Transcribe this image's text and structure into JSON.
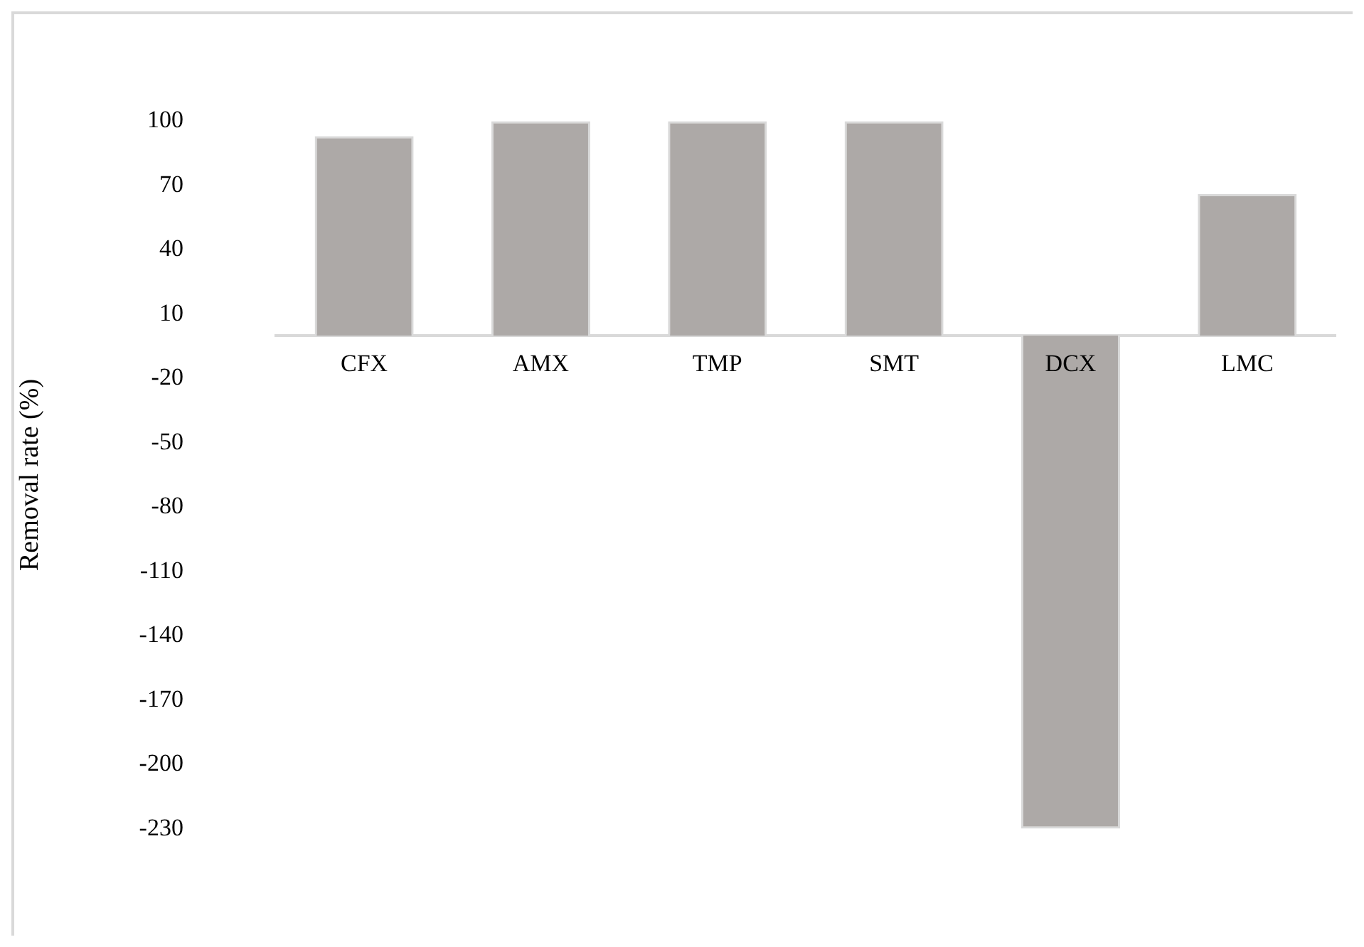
{
  "chart_data": {
    "type": "bar",
    "ylabel": "Removal rate (%)",
    "categories": [
      "CFX",
      "AMX",
      "TMP",
      "SMT",
      "DCX",
      "LMC"
    ],
    "values": [
      93,
      100,
      100,
      100,
      -230,
      66
    ],
    "color": "#ada9a7",
    "ylim": [
      -230,
      100
    ],
    "yticks": [
      100,
      70,
      40,
      10,
      -20,
      -50,
      -80,
      -110,
      -140,
      -170,
      -200,
      -230
    ],
    "grid": false,
    "legend": false
  }
}
